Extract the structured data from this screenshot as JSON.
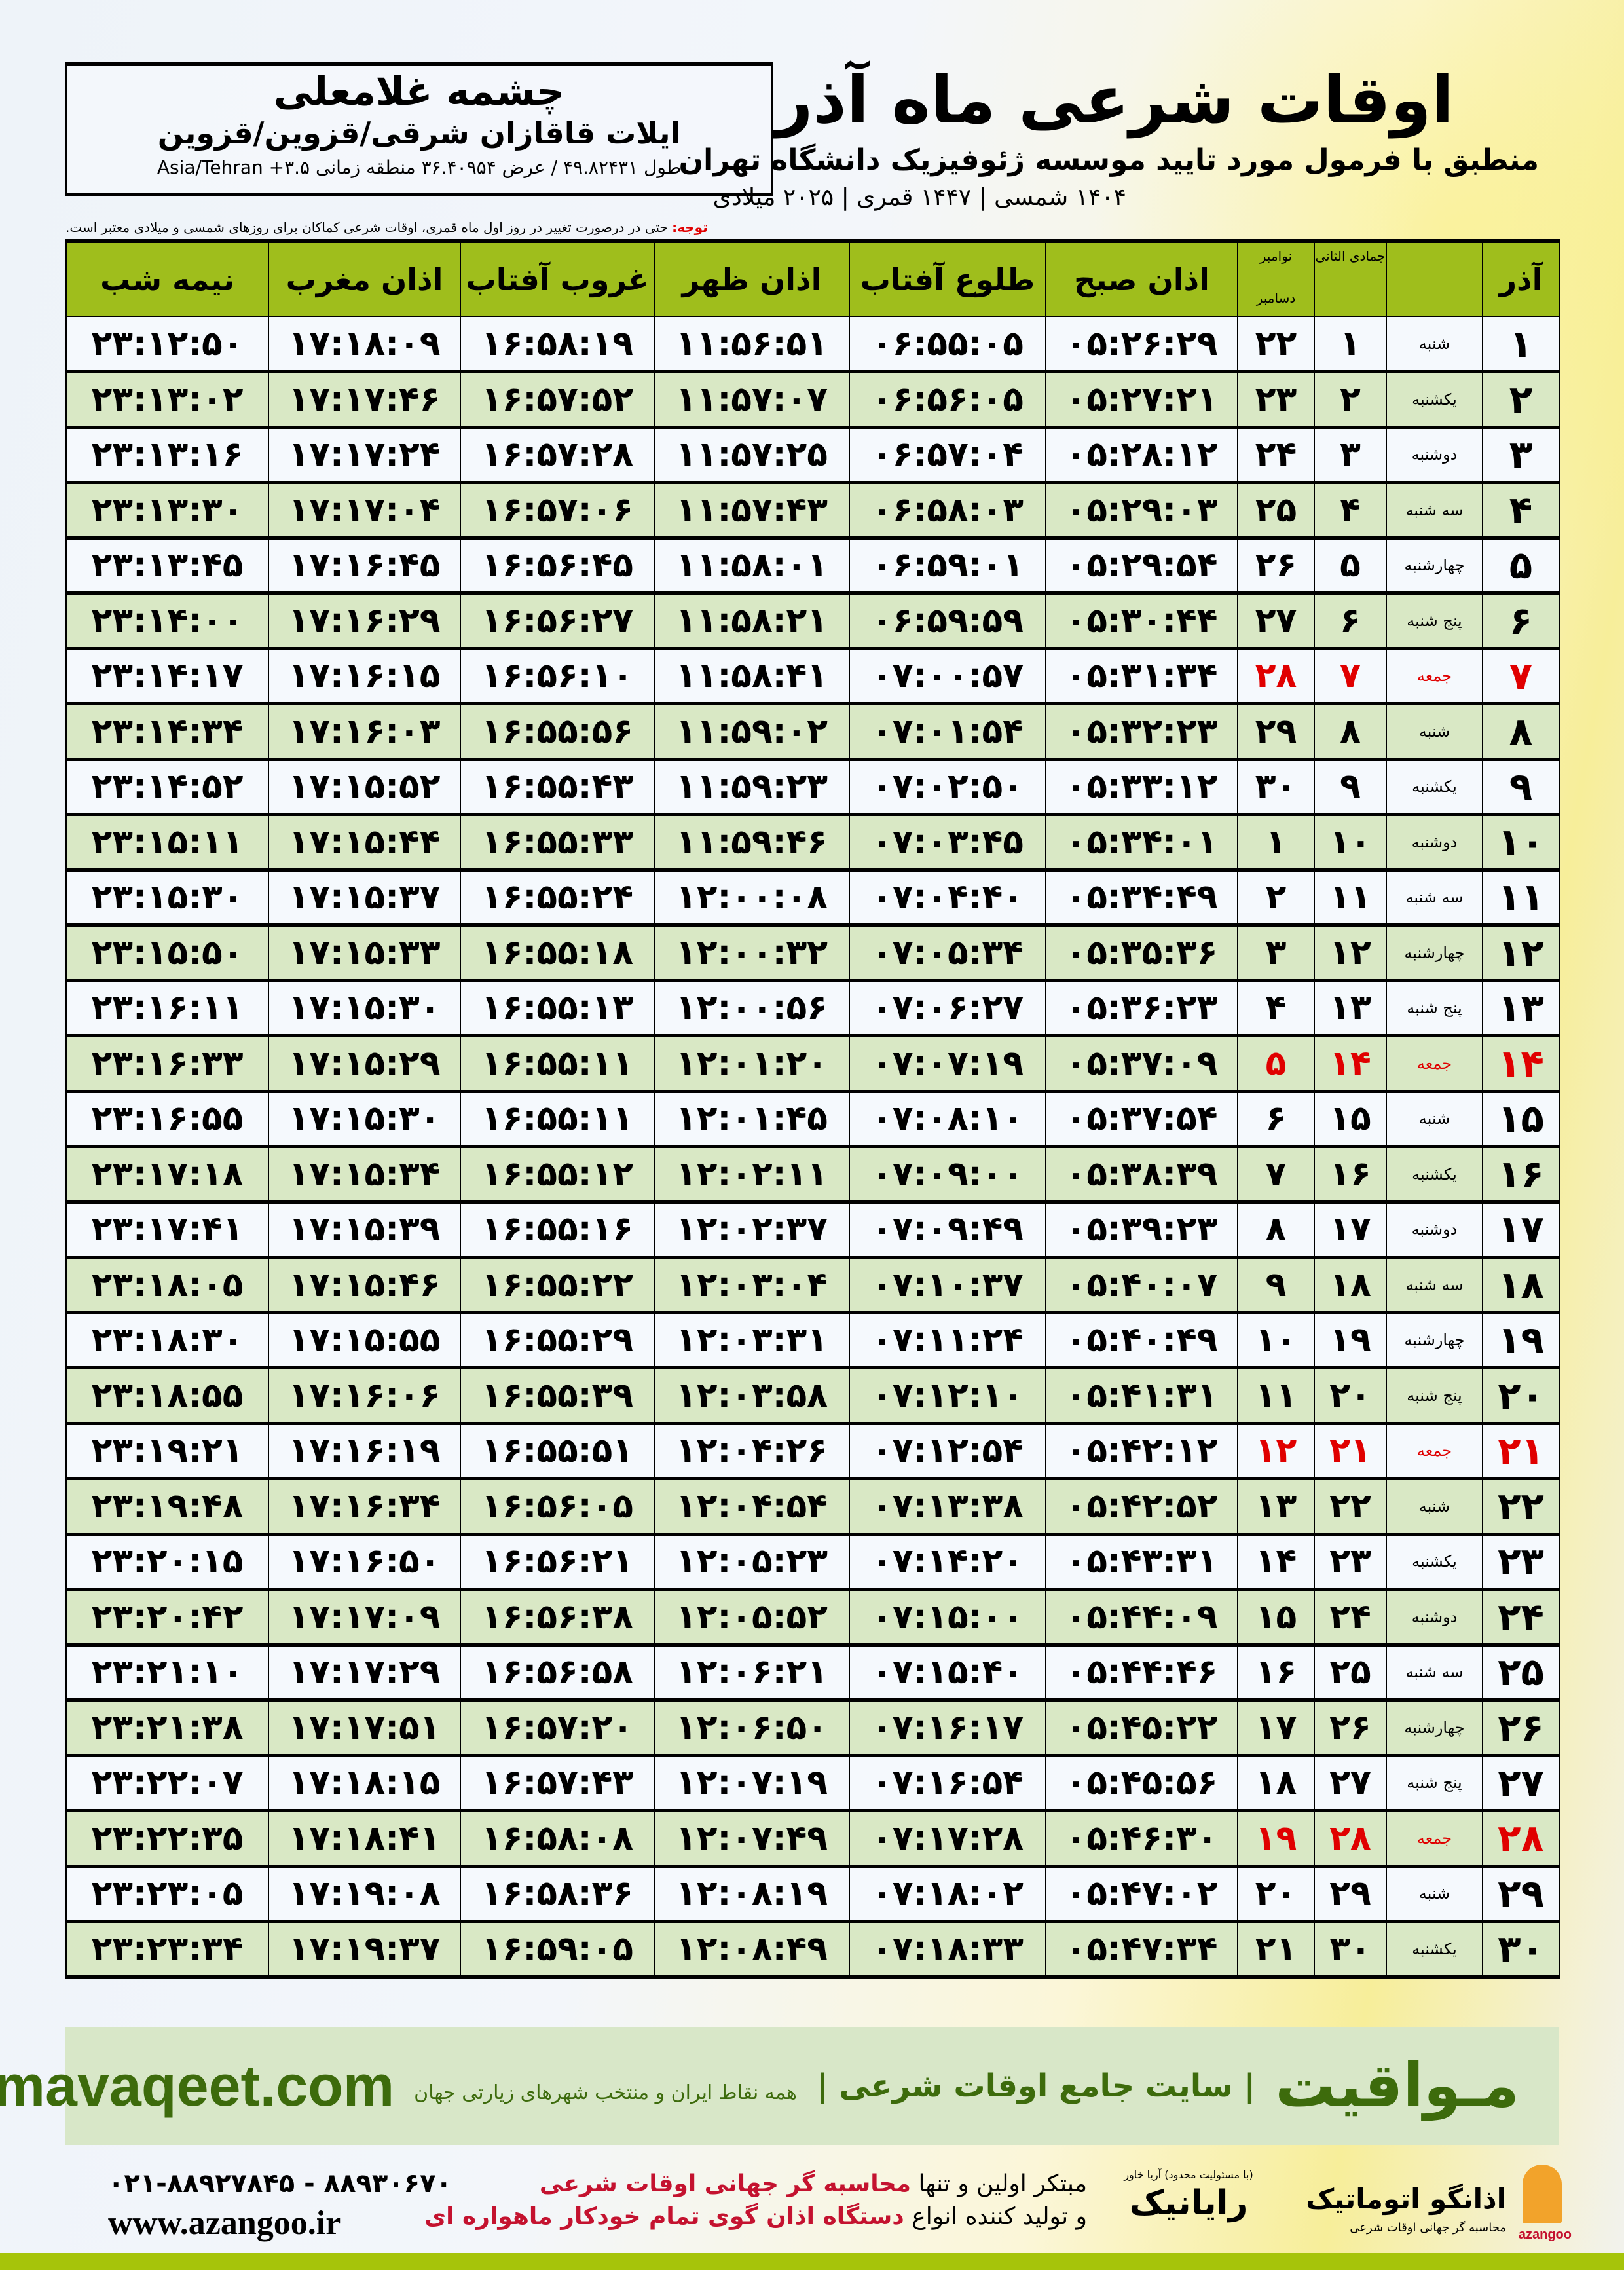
{
  "header": {
    "city": "چشمه غلامعلی",
    "region": "ایلات قاقازان شرقی/قزوین/قزوین",
    "coords": "طول ۴۹.۸۲۴۳۱ / عرض ۳۶.۴۰۹۵۴ منطقه زمانی ۳.۵+ Asia/Tehran",
    "title": "اوقات شرعی ماه آذر",
    "subtitle": "منطبق با فرمول مورد تایید موسسه ژئوفیزیک دانشگاه تهران",
    "dates": "۱۴۰۴ شمسی | ۱۴۴۷ قمری | ۲۰۲۵ میلادی",
    "note_label": "توجه:",
    "note": " حتی در درصورت تغییر در روز اول ماه قمری، اوقات شرعی کماکان برای روزهای شمسی و میلادی معتبر است."
  },
  "table": {
    "headers": {
      "day": "آذر",
      "jumada": "جمادی الثانی",
      "gregorian_top": "نوامبر",
      "gregorian_bottom": "دسامبر",
      "fajr": "اذان صبح",
      "sunrise": "طلوع آفتاب",
      "dhuhr": "اذان ظهر",
      "sunset": "غروب آفتاب",
      "maghrib": "اذان مغرب",
      "midnight": "نیمه شب"
    },
    "friday_color": "#e00000",
    "rows": [
      {
        "day": "۱",
        "weekday": "شنبه",
        "jumada": "۱",
        "greg": "۲۲",
        "fajr": "۰۵:۲۶:۲۹",
        "sunrise": "۰۶:۵۵:۰۵",
        "dhuhr": "۱۱:۵۶:۵۱",
        "sunset": "۱۶:۵۸:۱۹",
        "maghrib": "۱۷:۱۸:۰۹",
        "midnight": "۲۳:۱۲:۵۰"
      },
      {
        "day": "۲",
        "weekday": "یکشنبه",
        "jumada": "۲",
        "greg": "۲۳",
        "fajr": "۰۵:۲۷:۲۱",
        "sunrise": "۰۶:۵۶:۰۵",
        "dhuhr": "۱۱:۵۷:۰۷",
        "sunset": "۱۶:۵۷:۵۲",
        "maghrib": "۱۷:۱۷:۴۶",
        "midnight": "۲۳:۱۳:۰۲"
      },
      {
        "day": "۳",
        "weekday": "دوشنبه",
        "jumada": "۳",
        "greg": "۲۴",
        "fajr": "۰۵:۲۸:۱۲",
        "sunrise": "۰۶:۵۷:۰۴",
        "dhuhr": "۱۱:۵۷:۲۵",
        "sunset": "۱۶:۵۷:۲۸",
        "maghrib": "۱۷:۱۷:۲۴",
        "midnight": "۲۳:۱۳:۱۶"
      },
      {
        "day": "۴",
        "weekday": "سه شنبه",
        "jumada": "۴",
        "greg": "۲۵",
        "fajr": "۰۵:۲۹:۰۳",
        "sunrise": "۰۶:۵۸:۰۳",
        "dhuhr": "۱۱:۵۷:۴۳",
        "sunset": "۱۶:۵۷:۰۶",
        "maghrib": "۱۷:۱۷:۰۴",
        "midnight": "۲۳:۱۳:۳۰"
      },
      {
        "day": "۵",
        "weekday": "چهارشنبه",
        "jumada": "۵",
        "greg": "۲۶",
        "fajr": "۰۵:۲۹:۵۴",
        "sunrise": "۰۶:۵۹:۰۱",
        "dhuhr": "۱۱:۵۸:۰۱",
        "sunset": "۱۶:۵۶:۴۵",
        "maghrib": "۱۷:۱۶:۴۵",
        "midnight": "۲۳:۱۳:۴۵"
      },
      {
        "day": "۶",
        "weekday": "پنج شنبه",
        "jumada": "۶",
        "greg": "۲۷",
        "fajr": "۰۵:۳۰:۴۴",
        "sunrise": "۰۶:۵۹:۵۹",
        "dhuhr": "۱۱:۵۸:۲۱",
        "sunset": "۱۶:۵۶:۲۷",
        "maghrib": "۱۷:۱۶:۲۹",
        "midnight": "۲۳:۱۴:۰۰"
      },
      {
        "day": "۷",
        "weekday": "جمعه",
        "jumada": "۷",
        "greg": "۲۸",
        "fajr": "۰۵:۳۱:۳۴",
        "sunrise": "۰۷:۰۰:۵۷",
        "dhuhr": "۱۱:۵۸:۴۱",
        "sunset": "۱۶:۵۶:۱۰",
        "maghrib": "۱۷:۱۶:۱۵",
        "midnight": "۲۳:۱۴:۱۷",
        "friday": true
      },
      {
        "day": "۸",
        "weekday": "شنبه",
        "jumada": "۸",
        "greg": "۲۹",
        "fajr": "۰۵:۳۲:۲۳",
        "sunrise": "۰۷:۰۱:۵۴",
        "dhuhr": "۱۱:۵۹:۰۲",
        "sunset": "۱۶:۵۵:۵۶",
        "maghrib": "۱۷:۱۶:۰۳",
        "midnight": "۲۳:۱۴:۳۴"
      },
      {
        "day": "۹",
        "weekday": "یکشنبه",
        "jumada": "۹",
        "greg": "۳۰",
        "fajr": "۰۵:۳۳:۱۲",
        "sunrise": "۰۷:۰۲:۵۰",
        "dhuhr": "۱۱:۵۹:۲۳",
        "sunset": "۱۶:۵۵:۴۳",
        "maghrib": "۱۷:۱۵:۵۲",
        "midnight": "۲۳:۱۴:۵۲"
      },
      {
        "day": "۱۰",
        "weekday": "دوشنبه",
        "jumada": "۱۰",
        "greg": "۱",
        "fajr": "۰۵:۳۴:۰۱",
        "sunrise": "۰۷:۰۳:۴۵",
        "dhuhr": "۱۱:۵۹:۴۶",
        "sunset": "۱۶:۵۵:۳۳",
        "maghrib": "۱۷:۱۵:۴۴",
        "midnight": "۲۳:۱۵:۱۱"
      },
      {
        "day": "۱۱",
        "weekday": "سه شنبه",
        "jumada": "۱۱",
        "greg": "۲",
        "fajr": "۰۵:۳۴:۴۹",
        "sunrise": "۰۷:۰۴:۴۰",
        "dhuhr": "۱۲:۰۰:۰۸",
        "sunset": "۱۶:۵۵:۲۴",
        "maghrib": "۱۷:۱۵:۳۷",
        "midnight": "۲۳:۱۵:۳۰"
      },
      {
        "day": "۱۲",
        "weekday": "چهارشنبه",
        "jumada": "۱۲",
        "greg": "۳",
        "fajr": "۰۵:۳۵:۳۶",
        "sunrise": "۰۷:۰۵:۳۴",
        "dhuhr": "۱۲:۰۰:۳۲",
        "sunset": "۱۶:۵۵:۱۸",
        "maghrib": "۱۷:۱۵:۳۳",
        "midnight": "۲۳:۱۵:۵۰"
      },
      {
        "day": "۱۳",
        "weekday": "پنج شنبه",
        "jumada": "۱۳",
        "greg": "۴",
        "fajr": "۰۵:۳۶:۲۳",
        "sunrise": "۰۷:۰۶:۲۷",
        "dhuhr": "۱۲:۰۰:۵۶",
        "sunset": "۱۶:۵۵:۱۳",
        "maghrib": "۱۷:۱۵:۳۰",
        "midnight": "۲۳:۱۶:۱۱"
      },
      {
        "day": "۱۴",
        "weekday": "جمعه",
        "jumada": "۱۴",
        "greg": "۵",
        "fajr": "۰۵:۳۷:۰۹",
        "sunrise": "۰۷:۰۷:۱۹",
        "dhuhr": "۱۲:۰۱:۲۰",
        "sunset": "۱۶:۵۵:۱۱",
        "maghrib": "۱۷:۱۵:۲۹",
        "midnight": "۲۳:۱۶:۳۳",
        "friday": true
      },
      {
        "day": "۱۵",
        "weekday": "شنبه",
        "jumada": "۱۵",
        "greg": "۶",
        "fajr": "۰۵:۳۷:۵۴",
        "sunrise": "۰۷:۰۸:۱۰",
        "dhuhr": "۱۲:۰۱:۴۵",
        "sunset": "۱۶:۵۵:۱۱",
        "maghrib": "۱۷:۱۵:۳۰",
        "midnight": "۲۳:۱۶:۵۵"
      },
      {
        "day": "۱۶",
        "weekday": "یکشنبه",
        "jumada": "۱۶",
        "greg": "۷",
        "fajr": "۰۵:۳۸:۳۹",
        "sunrise": "۰۷:۰۹:۰۰",
        "dhuhr": "۱۲:۰۲:۱۱",
        "sunset": "۱۶:۵۵:۱۲",
        "maghrib": "۱۷:۱۵:۳۴",
        "midnight": "۲۳:۱۷:۱۸"
      },
      {
        "day": "۱۷",
        "weekday": "دوشنبه",
        "jumada": "۱۷",
        "greg": "۸",
        "fajr": "۰۵:۳۹:۲۳",
        "sunrise": "۰۷:۰۹:۴۹",
        "dhuhr": "۱۲:۰۲:۳۷",
        "sunset": "۱۶:۵۵:۱۶",
        "maghrib": "۱۷:۱۵:۳۹",
        "midnight": "۲۳:۱۷:۴۱"
      },
      {
        "day": "۱۸",
        "weekday": "سه شنبه",
        "jumada": "۱۸",
        "greg": "۹",
        "fajr": "۰۵:۴۰:۰۷",
        "sunrise": "۰۷:۱۰:۳۷",
        "dhuhr": "۱۲:۰۳:۰۴",
        "sunset": "۱۶:۵۵:۲۲",
        "maghrib": "۱۷:۱۵:۴۶",
        "midnight": "۲۳:۱۸:۰۵"
      },
      {
        "day": "۱۹",
        "weekday": "چهارشنبه",
        "jumada": "۱۹",
        "greg": "۱۰",
        "fajr": "۰۵:۴۰:۴۹",
        "sunrise": "۰۷:۱۱:۲۴",
        "dhuhr": "۱۲:۰۳:۳۱",
        "sunset": "۱۶:۵۵:۲۹",
        "maghrib": "۱۷:۱۵:۵۵",
        "midnight": "۲۳:۱۸:۳۰"
      },
      {
        "day": "۲۰",
        "weekday": "پنج شنبه",
        "jumada": "۲۰",
        "greg": "۱۱",
        "fajr": "۰۵:۴۱:۳۱",
        "sunrise": "۰۷:۱۲:۱۰",
        "dhuhr": "۱۲:۰۳:۵۸",
        "sunset": "۱۶:۵۵:۳۹",
        "maghrib": "۱۷:۱۶:۰۶",
        "midnight": "۲۳:۱۸:۵۵"
      },
      {
        "day": "۲۱",
        "weekday": "جمعه",
        "jumada": "۲۱",
        "greg": "۱۲",
        "fajr": "۰۵:۴۲:۱۲",
        "sunrise": "۰۷:۱۲:۵۴",
        "dhuhr": "۱۲:۰۴:۲۶",
        "sunset": "۱۶:۵۵:۵۱",
        "maghrib": "۱۷:۱۶:۱۹",
        "midnight": "۲۳:۱۹:۲۱",
        "friday": true
      },
      {
        "day": "۲۲",
        "weekday": "شنبه",
        "jumada": "۲۲",
        "greg": "۱۳",
        "fajr": "۰۵:۴۲:۵۲",
        "sunrise": "۰۷:۱۳:۳۸",
        "dhuhr": "۱۲:۰۴:۵۴",
        "sunset": "۱۶:۵۶:۰۵",
        "maghrib": "۱۷:۱۶:۳۴",
        "midnight": "۲۳:۱۹:۴۸"
      },
      {
        "day": "۲۳",
        "weekday": "یکشنبه",
        "jumada": "۲۳",
        "greg": "۱۴",
        "fajr": "۰۵:۴۳:۳۱",
        "sunrise": "۰۷:۱۴:۲۰",
        "dhuhr": "۱۲:۰۵:۲۳",
        "sunset": "۱۶:۵۶:۲۱",
        "maghrib": "۱۷:۱۶:۵۰",
        "midnight": "۲۳:۲۰:۱۵"
      },
      {
        "day": "۲۴",
        "weekday": "دوشنبه",
        "jumada": "۲۴",
        "greg": "۱۵",
        "fajr": "۰۵:۴۴:۰۹",
        "sunrise": "۰۷:۱۵:۰۰",
        "dhuhr": "۱۲:۰۵:۵۲",
        "sunset": "۱۶:۵۶:۳۸",
        "maghrib": "۱۷:۱۷:۰۹",
        "midnight": "۲۳:۲۰:۴۲"
      },
      {
        "day": "۲۵",
        "weekday": "سه شنبه",
        "jumada": "۲۵",
        "greg": "۱۶",
        "fajr": "۰۵:۴۴:۴۶",
        "sunrise": "۰۷:۱۵:۴۰",
        "dhuhr": "۱۲:۰۶:۲۱",
        "sunset": "۱۶:۵۶:۵۸",
        "maghrib": "۱۷:۱۷:۲۹",
        "midnight": "۲۳:۲۱:۱۰"
      },
      {
        "day": "۲۶",
        "weekday": "چهارشنبه",
        "jumada": "۲۶",
        "greg": "۱۷",
        "fajr": "۰۵:۴۵:۲۲",
        "sunrise": "۰۷:۱۶:۱۷",
        "dhuhr": "۱۲:۰۶:۵۰",
        "sunset": "۱۶:۵۷:۲۰",
        "maghrib": "۱۷:۱۷:۵۱",
        "midnight": "۲۳:۲۱:۳۸"
      },
      {
        "day": "۲۷",
        "weekday": "پنج شنبه",
        "jumada": "۲۷",
        "greg": "۱۸",
        "fajr": "۰۵:۴۵:۵۶",
        "sunrise": "۰۷:۱۶:۵۴",
        "dhuhr": "۱۲:۰۷:۱۹",
        "sunset": "۱۶:۵۷:۴۳",
        "maghrib": "۱۷:۱۸:۱۵",
        "midnight": "۲۳:۲۲:۰۷"
      },
      {
        "day": "۲۸",
        "weekday": "جمعه",
        "jumada": "۲۸",
        "greg": "۱۹",
        "fajr": "۰۵:۴۶:۳۰",
        "sunrise": "۰۷:۱۷:۲۸",
        "dhuhr": "۱۲:۰۷:۴۹",
        "sunset": "۱۶:۵۸:۰۸",
        "maghrib": "۱۷:۱۸:۴۱",
        "midnight": "۲۳:۲۲:۳۵",
        "friday": true
      },
      {
        "day": "۲۹",
        "weekday": "شنبه",
        "jumada": "۲۹",
        "greg": "۲۰",
        "fajr": "۰۵:۴۷:۰۲",
        "sunrise": "۰۷:۱۸:۰۲",
        "dhuhr": "۱۲:۰۸:۱۹",
        "sunset": "۱۶:۵۸:۳۶",
        "maghrib": "۱۷:۱۹:۰۸",
        "midnight": "۲۳:۲۳:۰۵"
      },
      {
        "day": "۳۰",
        "weekday": "یکشنبه",
        "jumada": "۳۰",
        "greg": "۲۱",
        "fajr": "۰۵:۴۷:۳۴",
        "sunrise": "۰۷:۱۸:۳۳",
        "dhuhr": "۱۲:۰۸:۴۹",
        "sunset": "۱۶:۵۹:۰۵",
        "maghrib": "۱۷:۱۹:۳۷",
        "midnight": "۲۳:۲۳:۳۴"
      }
    ]
  },
  "footer": {
    "brand": "مـواقیت",
    "slogan": "| سایت جامع اوقات شرعی |",
    "slogan2": "همه نقاط ایران و منتخب شهرهای زیارتی جهان",
    "site": "mavaqeet.com",
    "promo_line1_a": "مبتکر اولین و تنها ",
    "promo_line1_b": "محاسبه گر جهانی اوقات شرعی",
    "promo_line2_a": "و تولید کننده انواع ",
    "promo_line2_b": "دستگاه اذان گوی تمام خودکار ماهواره ای",
    "phone": "۰۲۱-۸۸۹۲۷۸۴۵ - ۸۸۹۳۰۶۷۰",
    "web": "www.azangoo.ir",
    "logo_rayanik": "رایانیک",
    "logo_rayanik_sub": "(با مسئولیت محدود) آریا خاور",
    "logo_azangoo": "اذانگو اتوماتیک",
    "logo_azangoo_sub": "محاسبه گر جهانی اوقات شرعی",
    "logo_azangoo_en": "azangoo",
    "accent_green": "#3d6b0c",
    "header_green": "#9fbe1c"
  }
}
